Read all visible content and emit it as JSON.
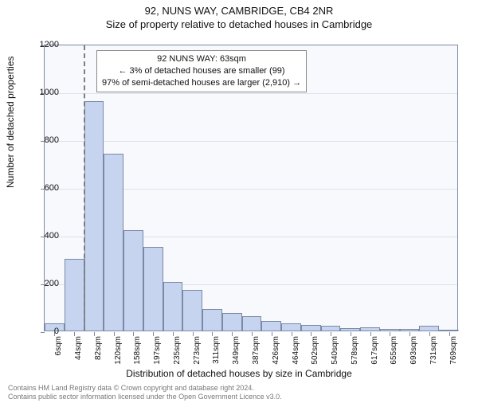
{
  "header": {
    "line1": "92, NUNS WAY, CAMBRIDGE, CB4 2NR",
    "line2": "Size of property relative to detached houses in Cambridge"
  },
  "chart": {
    "type": "histogram",
    "ylabel": "Number of detached properties",
    "xlabel": "Distribution of detached houses by size in Cambridge",
    "ylim": [
      0,
      1200
    ],
    "ytick_step": 200,
    "yticks": [
      0,
      200,
      400,
      600,
      800,
      1000,
      1200
    ],
    "xtick_labels": [
      "6sqm",
      "44sqm",
      "82sqm",
      "120sqm",
      "158sqm",
      "197sqm",
      "235sqm",
      "273sqm",
      "311sqm",
      "349sqm",
      "387sqm",
      "426sqm",
      "464sqm",
      "502sqm",
      "540sqm",
      "578sqm",
      "617sqm",
      "655sqm",
      "693sqm",
      "731sqm",
      "769sqm"
    ],
    "bar_values": [
      30,
      300,
      960,
      740,
      420,
      350,
      205,
      170,
      90,
      75,
      60,
      40,
      30,
      25,
      20,
      10,
      12,
      8,
      6,
      20,
      5
    ],
    "bar_color": "#c6d4ef",
    "bar_border_color": "#7a89a6",
    "bar_width_ratio": 1.0,
    "background_color": "#f7f9fc",
    "grid_color": "#dde3ec",
    "axis_color": "#7a89a6",
    "tick_fontsize": 10,
    "label_fontsize": 12,
    "reference_line": {
      "x_value": 63,
      "color": "#7f7f7f",
      "dash": true
    },
    "annotation": {
      "lines": [
        "92 NUNS WAY: 63sqm",
        "← 3% of detached houses are smaller (99)",
        "97% of semi-detached houses are larger (2,910) →"
      ],
      "border_color": "#888888",
      "background": "#ffffff",
      "fontsize": 11
    }
  },
  "footer": {
    "line1": "Contains HM Land Registry data © Crown copyright and database right 2024.",
    "line2": "Contains public sector information licensed under the Open Government Licence v3.0."
  }
}
